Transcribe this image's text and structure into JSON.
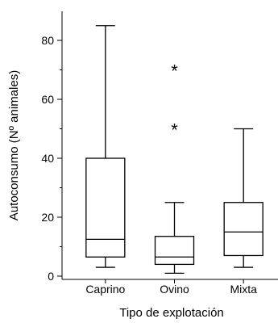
{
  "chart_data": {
    "type": "boxplot",
    "xlabel": "Tipo de explotación",
    "ylabel": "Autoconsumo (Nº animales)",
    "ylim": [
      0,
      90
    ],
    "yticks": [
      0,
      20,
      40,
      60,
      80
    ],
    "grid": false,
    "categories": [
      "Caprino",
      "Ovino",
      "Mixta"
    ],
    "boxes": [
      {
        "category": "Caprino",
        "whisker_low": 3,
        "q1": 6.5,
        "median": 12.5,
        "q3": 40,
        "whisker_high": 85,
        "outliers": []
      },
      {
        "category": "Ovino",
        "whisker_low": 1,
        "q1": 4,
        "median": 6.5,
        "q3": 13.5,
        "whisker_high": 25,
        "outliers": [
          50,
          70
        ]
      },
      {
        "category": "Mixta",
        "whisker_low": 3,
        "q1": 7,
        "median": 15,
        "q3": 25,
        "whisker_high": 50,
        "outliers": []
      }
    ],
    "outlier_marker": "*",
    "colors": {
      "line": "#000000",
      "background": "#ffffff"
    }
  }
}
